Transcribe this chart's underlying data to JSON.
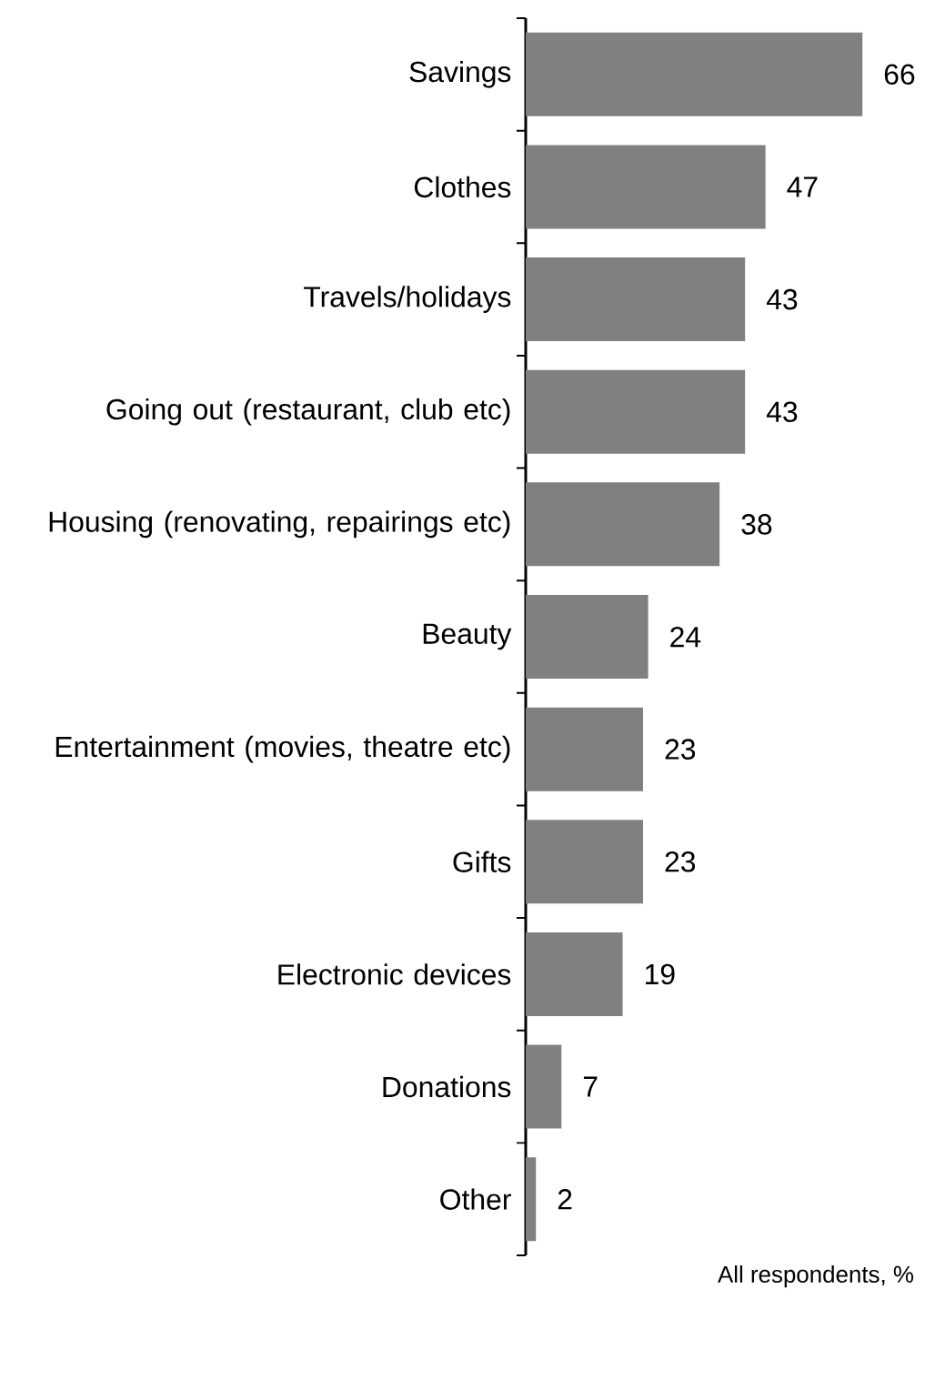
{
  "chart_data": {
    "type": "bar",
    "orientation": "horizontal",
    "categories": [
      "Savings",
      "Clothes",
      "Travels/holidays",
      "Going out (restaurant, club etc)",
      "Housing (renovating, repairings etc)",
      "Beauty",
      "Entertainment (movies, theatre etc)",
      "Gifts",
      "Electronic devices",
      "Donations",
      "Other"
    ],
    "values": [
      66,
      47,
      43,
      43,
      38,
      24,
      23,
      23,
      19,
      7,
      2
    ],
    "color": "#808080",
    "data_labels": true,
    "tick_labels": "y",
    "annotations": [
      "All respondents, %"
    ]
  }
}
